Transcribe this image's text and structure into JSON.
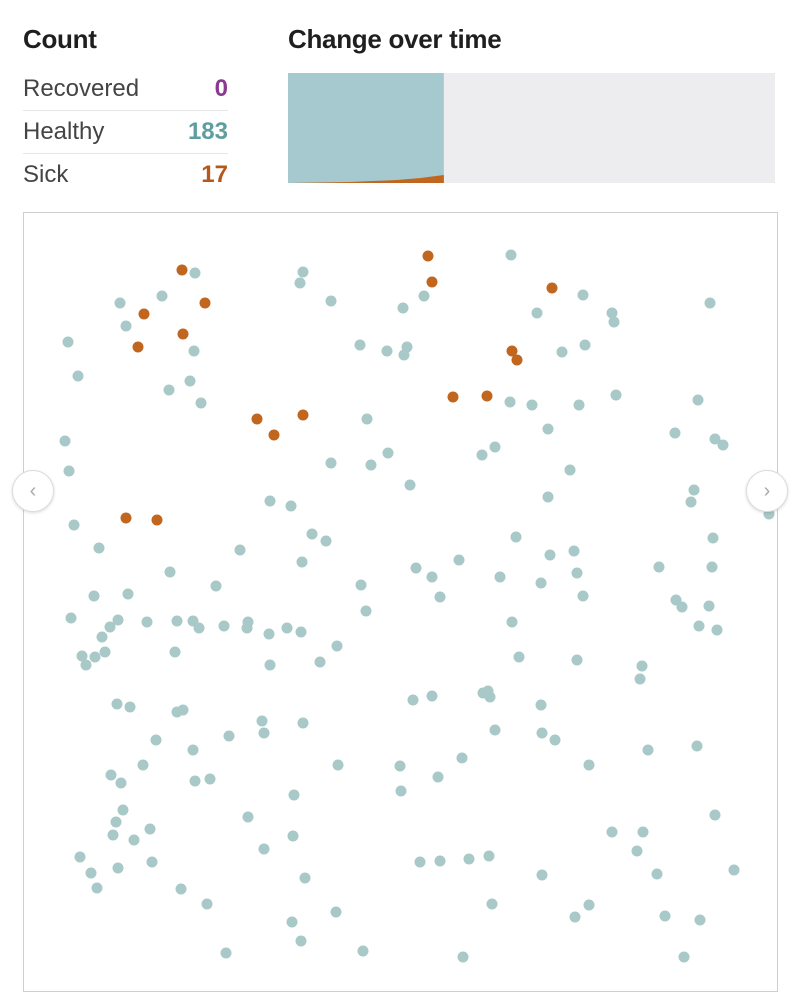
{
  "count": {
    "heading": "Count",
    "rows": [
      {
        "label": "Recovered",
        "value": "0",
        "color": "#8b3a8f"
      },
      {
        "label": "Healthy",
        "value": "183",
        "color": "#5f9ea0"
      },
      {
        "label": "Sick",
        "value": "17",
        "color": "#b5581a"
      }
    ]
  },
  "change": {
    "heading": "Change over time",
    "progress": 0.32,
    "colors": {
      "healthy": "#a6c8cf",
      "sick": "#c0661f",
      "empty": "#ededf0"
    }
  },
  "simulation": {
    "healthy_color": "#a9c8c8",
    "sick_color": "#c0661f"
  },
  "nav": {
    "prev_icon": "chevron-left-icon",
    "next_icon": "chevron-right-icon"
  }
}
